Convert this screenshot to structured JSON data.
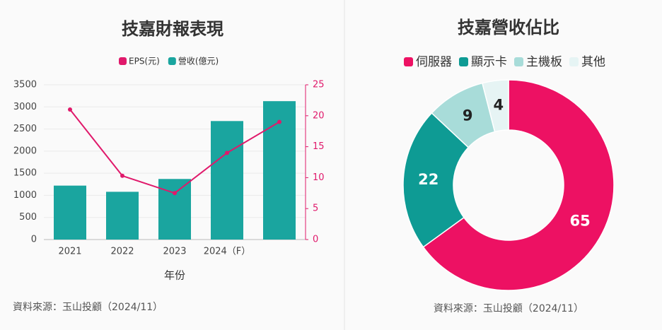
{
  "chart_data": [
    {
      "type": "combo",
      "title": "技嘉財報表現",
      "categories": [
        "2021",
        "2022",
        "2023",
        "2024（F）",
        null
      ],
      "series": [
        {
          "name": "EPS(元)",
          "type": "line",
          "color": "#e0196b",
          "axis": "y2",
          "values": [
            21,
            10.3,
            7.5,
            14,
            19
          ]
        },
        {
          "name": "營收(億元)",
          "type": "bar",
          "color": "#1aa59f",
          "values": [
            1220,
            1080,
            1370,
            2680,
            3130
          ]
        }
      ],
      "ylim": [
        0,
        3500
      ],
      "yticks": [
        0,
        500,
        1000,
        1500,
        2000,
        2500,
        3000,
        3500
      ],
      "y2lim": [
        0,
        25
      ],
      "y2ticks": [
        0,
        5,
        10,
        15,
        20,
        25
      ],
      "xlabel": "年份",
      "source": "資料來源：玉山投顧（2024/11）",
      "grid": true
    },
    {
      "type": "donut",
      "title": "技嘉營收佔比",
      "categories": [
        "伺服器",
        "顯示卡",
        "主機板",
        "其他"
      ],
      "values": [
        65,
        22,
        9,
        4
      ],
      "colors": [
        "#ed1163",
        "#0e9b94",
        "#a8dcd9",
        "#e6f4f4"
      ],
      "label_colors": [
        "#ffffff",
        "#ffffff",
        "#222222",
        "#222222"
      ],
      "source": "資料來源：玉山投顧（2024/11）"
    }
  ]
}
